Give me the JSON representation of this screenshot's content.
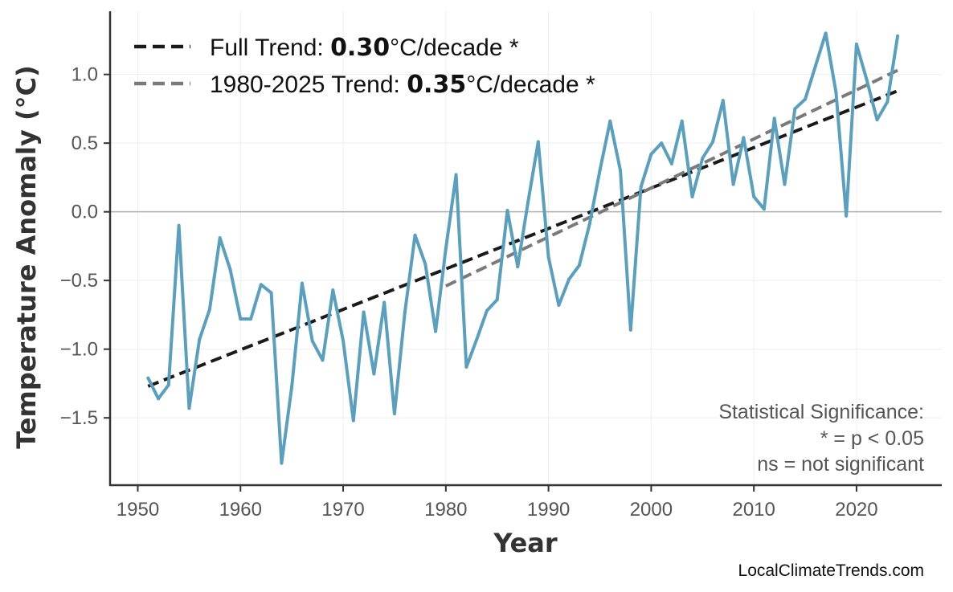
{
  "chart_data": {
    "type": "line",
    "xlabel": "Year",
    "ylabel": "Temperature Anomaly (°C)",
    "xlim": [
      1947.3,
      2028.3
    ],
    "ylim": [
      -1.99,
      1.46
    ],
    "xticks": [
      1950,
      1960,
      1970,
      1980,
      1990,
      2000,
      2010,
      2020
    ],
    "yticks": [
      -1.5,
      -1.0,
      -0.5,
      0.0,
      0.5,
      1.0
    ],
    "ytick_labels": [
      "−1.5",
      "−1.0",
      "−0.5",
      "0.0",
      "0.5",
      "1.0"
    ],
    "grid": true,
    "zero_line": true,
    "series_color": "#5aa0be",
    "x": [
      1951,
      1952,
      1953,
      1954,
      1955,
      1956,
      1957,
      1958,
      1959,
      1960,
      1961,
      1962,
      1963,
      1964,
      1965,
      1966,
      1967,
      1968,
      1969,
      1970,
      1971,
      1972,
      1973,
      1974,
      1975,
      1976,
      1977,
      1978,
      1979,
      1980,
      1981,
      1982,
      1983,
      1984,
      1985,
      1986,
      1987,
      1988,
      1989,
      1990,
      1991,
      1992,
      1993,
      1994,
      1995,
      1996,
      1997,
      1998,
      1999,
      2000,
      2001,
      2002,
      2003,
      2004,
      2005,
      2006,
      2007,
      2008,
      2009,
      2010,
      2011,
      2012,
      2013,
      2014,
      2015,
      2016,
      2017,
      2018,
      2019,
      2020,
      2021,
      2022,
      2023,
      2024
    ],
    "values": [
      -1.21,
      -1.36,
      -1.26,
      -0.1,
      -1.43,
      -0.93,
      -0.71,
      -0.19,
      -0.42,
      -0.78,
      -0.78,
      -0.53,
      -0.59,
      -1.83,
      -1.27,
      -0.52,
      -0.94,
      -1.08,
      -0.57,
      -0.94,
      -1.52,
      -0.73,
      -1.18,
      -0.66,
      -1.47,
      -0.74,
      -0.17,
      -0.38,
      -0.87,
      -0.27,
      0.27,
      -1.13,
      -0.93,
      -0.72,
      -0.64,
      0.01,
      -0.4,
      0.07,
      0.51,
      -0.33,
      -0.68,
      -0.49,
      -0.39,
      -0.09,
      0.3,
      0.66,
      0.3,
      -0.86,
      0.18,
      0.42,
      0.5,
      0.35,
      0.66,
      0.11,
      0.39,
      0.51,
      0.81,
      0.2,
      0.54,
      0.11,
      0.02,
      0.68,
      0.2,
      0.75,
      0.82,
      1.06,
      1.3,
      0.87,
      -0.03,
      1.22,
      0.96,
      0.67,
      0.8,
      1.28
    ],
    "trends": [
      {
        "label_prefix": "Full Trend: ",
        "rate": "0.30",
        "label_suffix": "°C/decade *",
        "x": [
          1951,
          2024
        ],
        "y": [
          -1.27,
          0.88
        ],
        "color": "#1a1a1a"
      },
      {
        "label_prefix": "1980-2025 Trend: ",
        "rate": "0.35",
        "label_suffix": "°C/decade *",
        "x": [
          1980,
          2024
        ],
        "y": [
          -0.54,
          1.03
        ],
        "color": "#7a7a7a"
      }
    ],
    "legend_position": "top-left",
    "annotation": [
      "Statistical Significance:",
      "* = p < 0.05",
      "ns = not significant"
    ]
  },
  "credit": "LocalClimateTrends.com"
}
